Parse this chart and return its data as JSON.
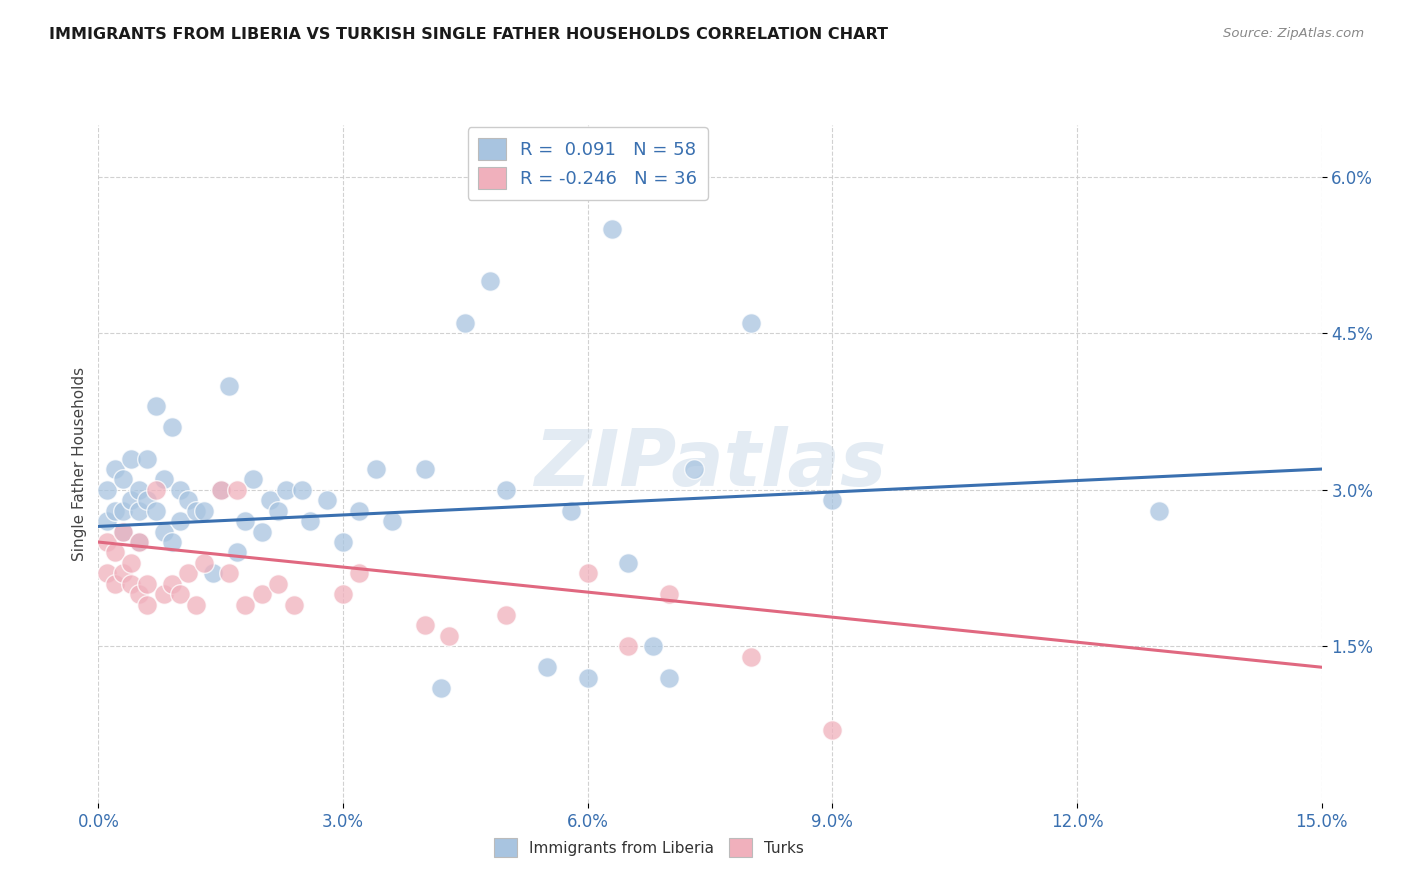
{
  "title": "IMMIGRANTS FROM LIBERIA VS TURKISH SINGLE FATHER HOUSEHOLDS CORRELATION CHART",
  "source": "Source: ZipAtlas.com",
  "xlim": [
    0.0,
    0.15
  ],
  "ylim": [
    0.0,
    0.065
  ],
  "ylabel": "Single Father Households",
  "legend_labels": [
    "Immigrants from Liberia",
    "Turks"
  ],
  "R_blue": 0.091,
  "N_blue": 58,
  "R_pink": -0.246,
  "N_pink": 36,
  "color_blue": "#a8c4e0",
  "color_pink": "#f0b0bc",
  "line_color_blue": "#3a70b0",
  "line_color_pink": "#e06880",
  "watermark": "ZIPatlas",
  "blue_x": [
    0.001,
    0.001,
    0.002,
    0.002,
    0.003,
    0.003,
    0.003,
    0.004,
    0.004,
    0.005,
    0.005,
    0.005,
    0.006,
    0.006,
    0.007,
    0.007,
    0.008,
    0.008,
    0.009,
    0.009,
    0.01,
    0.01,
    0.011,
    0.012,
    0.013,
    0.014,
    0.015,
    0.016,
    0.017,
    0.018,
    0.019,
    0.02,
    0.021,
    0.022,
    0.023,
    0.025,
    0.026,
    0.028,
    0.03,
    0.032,
    0.034,
    0.036,
    0.04,
    0.042,
    0.045,
    0.048,
    0.05,
    0.055,
    0.058,
    0.06,
    0.063,
    0.065,
    0.068,
    0.07,
    0.073,
    0.08,
    0.09,
    0.13
  ],
  "blue_y": [
    0.027,
    0.03,
    0.028,
    0.032,
    0.026,
    0.028,
    0.031,
    0.033,
    0.029,
    0.028,
    0.03,
    0.025,
    0.029,
    0.033,
    0.038,
    0.028,
    0.031,
    0.026,
    0.025,
    0.036,
    0.03,
    0.027,
    0.029,
    0.028,
    0.028,
    0.022,
    0.03,
    0.04,
    0.024,
    0.027,
    0.031,
    0.026,
    0.029,
    0.028,
    0.03,
    0.03,
    0.027,
    0.029,
    0.025,
    0.028,
    0.032,
    0.027,
    0.032,
    0.011,
    0.046,
    0.05,
    0.03,
    0.013,
    0.028,
    0.012,
    0.055,
    0.023,
    0.015,
    0.012,
    0.032,
    0.046,
    0.029,
    0.028
  ],
  "pink_x": [
    0.001,
    0.001,
    0.002,
    0.002,
    0.003,
    0.003,
    0.004,
    0.004,
    0.005,
    0.005,
    0.006,
    0.006,
    0.007,
    0.008,
    0.009,
    0.01,
    0.011,
    0.012,
    0.013,
    0.015,
    0.016,
    0.017,
    0.018,
    0.02,
    0.022,
    0.024,
    0.03,
    0.032,
    0.04,
    0.043,
    0.05,
    0.06,
    0.065,
    0.07,
    0.08,
    0.09
  ],
  "pink_y": [
    0.025,
    0.022,
    0.021,
    0.024,
    0.026,
    0.022,
    0.021,
    0.023,
    0.025,
    0.02,
    0.021,
    0.019,
    0.03,
    0.02,
    0.021,
    0.02,
    0.022,
    0.019,
    0.023,
    0.03,
    0.022,
    0.03,
    0.019,
    0.02,
    0.021,
    0.019,
    0.02,
    0.022,
    0.017,
    0.016,
    0.018,
    0.022,
    0.015,
    0.02,
    0.014,
    0.007
  ]
}
